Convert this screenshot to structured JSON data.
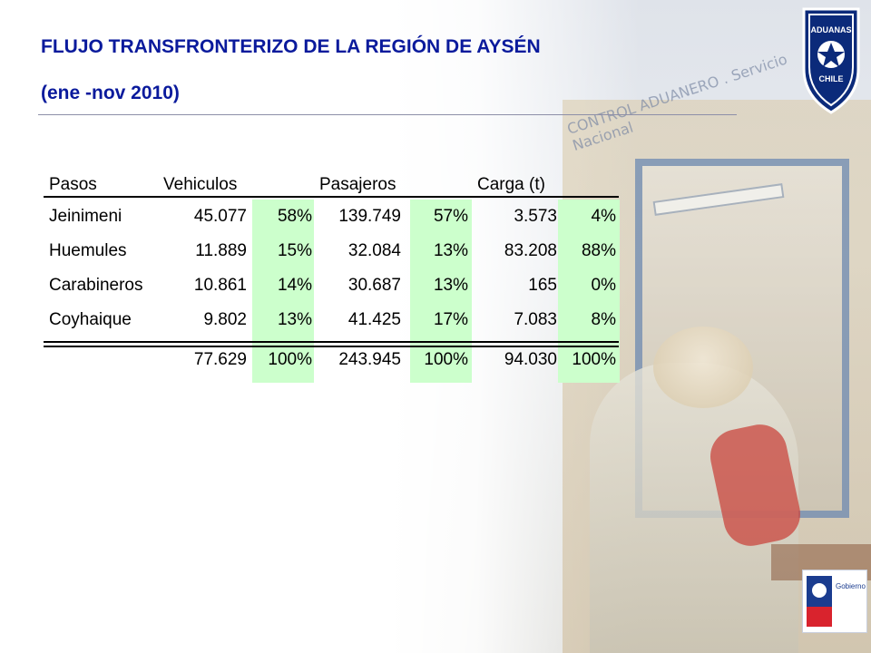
{
  "slide": {
    "title": "FLUJO TRANSFRONTERIZO DE LA REGIÓN DE AYSÉN",
    "subtitle": "(ene -nov 2010)"
  },
  "colors": {
    "title": "#0a1a9c",
    "highlight": "#ccffcc"
  },
  "table": {
    "headers": {
      "pasos": "Pasos",
      "vehiculos": "Vehiculos",
      "pasajeros": "Pasajeros",
      "carga": "Carga (t)"
    },
    "rows": [
      {
        "paso": "Jeinimeni",
        "veh": "45.077",
        "veh_pct": "58%",
        "pas": "139.749",
        "pas_pct": "57%",
        "car": "3.573",
        "car_pct": "4%"
      },
      {
        "paso": "Huemules",
        "veh": "11.889",
        "veh_pct": "15%",
        "pas": "32.084",
        "pas_pct": "13%",
        "car": "83.208",
        "car_pct": "88%"
      },
      {
        "paso": "Carabineros",
        "veh": "10.861",
        "veh_pct": "14%",
        "pas": "30.687",
        "pas_pct": "13%",
        "car": "165",
        "car_pct": "0%"
      },
      {
        "paso": "Coyhaique",
        "veh": "9.802",
        "veh_pct": "13%",
        "pas": "41.425",
        "pas_pct": "17%",
        "car": "7.083",
        "car_pct": "8%"
      }
    ],
    "total": {
      "veh": "77.629",
      "veh_pct": "100%",
      "pas": "243.945",
      "pas_pct": "100%",
      "car": "94.030",
      "car_pct": "100%"
    }
  },
  "background": {
    "sign_text": "CONTROL ADUANERO . Servicio Nacional"
  },
  "logos": {
    "aduanas": {
      "icon": "aduanas-chile-shield-logo",
      "text_top": "ADUANAS",
      "text_bottom": "CHILE"
    },
    "gobierno": {
      "icon": "gobierno-de-chile-logo",
      "text": "Gobierno de Chile"
    }
  }
}
